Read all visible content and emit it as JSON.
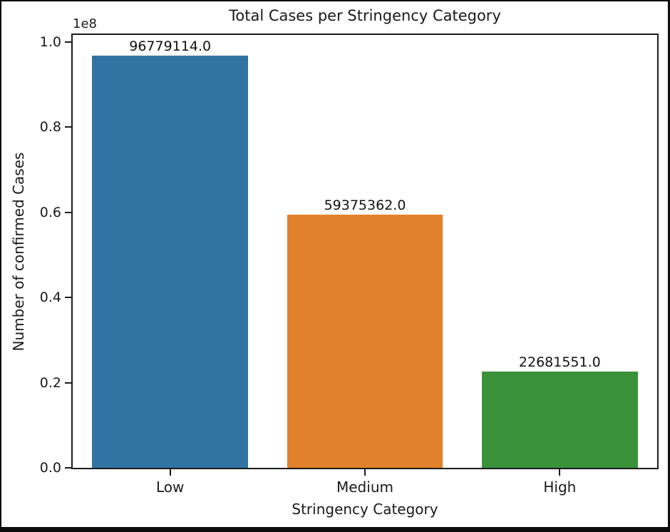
{
  "chart_data": {
    "type": "bar",
    "title": "Total Cases per Stringency Category",
    "xlabel": "Stringency Category",
    "ylabel": "Number of confirmed Cases",
    "y_offset_multiplier": "1e8",
    "categories": [
      "Low",
      "Medium",
      "High"
    ],
    "values": [
      96779114.0,
      59375362.0,
      22681551.0
    ],
    "value_labels": [
      "96779114.0",
      "59375362.0",
      "22681551.0"
    ],
    "bar_colors": [
      "#3274a1",
      "#e1812c",
      "#3a923a"
    ],
    "ylim": [
      0,
      101618070
    ],
    "ytick_values": [
      0.0,
      0.2,
      0.4,
      0.6,
      0.8,
      1.0
    ],
    "ytick_labels": [
      "0.0",
      "0.2",
      "0.4",
      "0.6",
      "0.8",
      "1.0"
    ],
    "bar_relative_width": 0.8,
    "grid": false,
    "legend": null,
    "frame_color": "#0c0c0c",
    "spine_color": "#1c1c1c"
  }
}
